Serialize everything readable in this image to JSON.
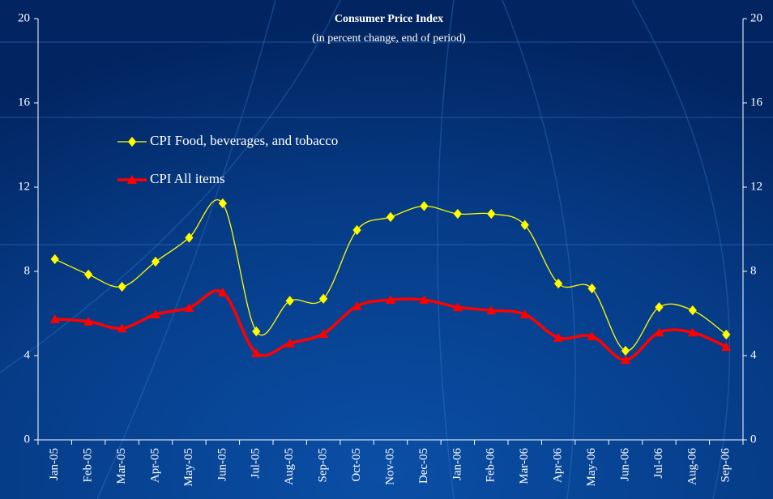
{
  "chart_data": {
    "type": "line",
    "title": "Consumer Price Index",
    "subtitle": "(in percent change, end of period)",
    "categories": [
      "Jan-05",
      "Feb-05",
      "Mar-05",
      "Apr-05",
      "May-05",
      "Jun-05",
      "Jul-05",
      "Aug-05",
      "Sep-05",
      "Oct-05",
      "Nov-05",
      "Dec-05",
      "Jan-06",
      "Feb-06",
      "Mar-06",
      "Apr-06",
      "May-06",
      "Jun-06",
      "Jul-06",
      "Aug-06",
      "Sep-06"
    ],
    "series": [
      {
        "name": "CPI Food, beverages, and tobacco",
        "color": "#ffff00",
        "marker": "diamond",
        "values": [
          8.58,
          7.85,
          7.27,
          8.46,
          9.6,
          11.23,
          5.15,
          6.6,
          6.7,
          9.96,
          10.58,
          11.1,
          10.73,
          10.73,
          10.2,
          7.42,
          7.19,
          4.23,
          6.3,
          6.15,
          5.0
        ]
      },
      {
        "name": "CPI All items",
        "color": "#ff0000",
        "marker": "triangle",
        "values": [
          5.73,
          5.62,
          5.3,
          5.96,
          6.27,
          7.0,
          4.12,
          4.58,
          5.04,
          6.35,
          6.65,
          6.65,
          6.3,
          6.15,
          5.96,
          4.85,
          4.92,
          3.8,
          5.1,
          5.1,
          4.42
        ]
      }
    ],
    "ylim": [
      0,
      20
    ],
    "yticks": [
      0,
      4,
      8,
      12,
      16,
      20
    ],
    "y2lim": [
      0,
      20
    ],
    "y2ticks": [
      0,
      4,
      8,
      12,
      16,
      20
    ],
    "smooth": true
  }
}
